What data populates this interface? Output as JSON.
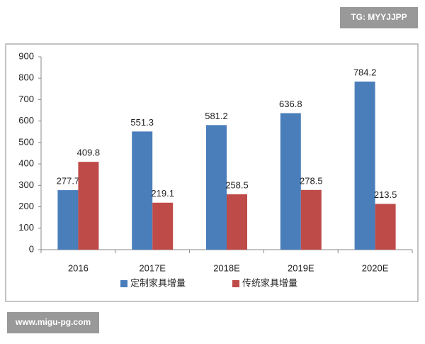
{
  "chart_data": {
    "type": "bar",
    "categories": [
      "2016",
      "2017E",
      "2018E",
      "2019E",
      "2020E"
    ],
    "series": [
      {
        "name": "定制家具增量",
        "color": "#4a7ebb",
        "values": [
          277.7,
          551.3,
          581.2,
          636.8,
          784.2
        ]
      },
      {
        "name": "传统家具增量",
        "color": "#be4b48",
        "values": [
          409.8,
          219.1,
          258.5,
          278.5,
          213.5
        ]
      }
    ],
    "ylim": [
      0,
      900
    ],
    "yticks": [
      0,
      100,
      200,
      300,
      400,
      500,
      600,
      700,
      800,
      900
    ],
    "grid": false,
    "legend": "bottom"
  },
  "watermarks": [
    "TG: MYYJJPP",
    "www.migu-pg.com"
  ]
}
